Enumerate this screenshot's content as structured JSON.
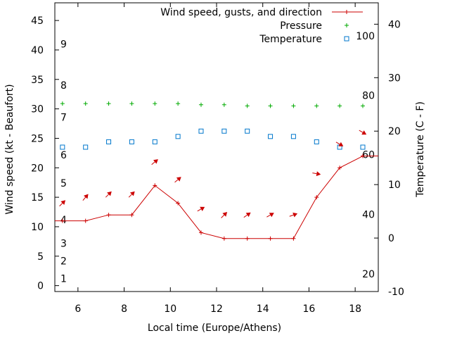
{
  "chart_data": {
    "type": "line",
    "xlabel": "Local time (Europe/Athens)",
    "ylabel_left": "Wind speed (kt - Beaufort)",
    "ylabel_right": "Temperature (C - F)",
    "xlim": [
      5,
      19
    ],
    "x_ticks": [
      6,
      8,
      10,
      12,
      14,
      16,
      18
    ],
    "ylim_left": [
      -1,
      48
    ],
    "y_ticks_left": [
      0,
      5,
      10,
      15,
      20,
      25,
      30,
      35,
      40,
      45
    ],
    "ylim_right": [
      -10,
      44
    ],
    "y_ticks_right": [
      -10,
      0,
      10,
      20,
      30,
      40
    ],
    "beaufort_labels": [
      {
        "label": "1",
        "kt": 1.2
      },
      {
        "label": "2",
        "kt": 4.2
      },
      {
        "label": "3",
        "kt": 7.2
      },
      {
        "label": "4",
        "kt": 11.2
      },
      {
        "label": "5",
        "kt": 17.4
      },
      {
        "label": "6",
        "kt": 22.2
      },
      {
        "label": "7",
        "kt": 28.6
      },
      {
        "label": "8",
        "kt": 34.0
      },
      {
        "label": "9",
        "kt": 41.0
      }
    ],
    "fahrenheit_labels": [
      {
        "label": "20",
        "celsius": -6.7
      },
      {
        "label": "40",
        "celsius": 4.4
      },
      {
        "label": "60",
        "celsius": 15.6
      },
      {
        "label": "80",
        "celsius": 26.7
      },
      {
        "label": "100",
        "celsius": 37.8
      }
    ],
    "x": [
      5.33,
      6.33,
      7.33,
      8.33,
      9.33,
      10.33,
      11.33,
      12.33,
      13.33,
      14.33,
      15.33,
      16.33,
      17.33,
      18.33
    ],
    "series": [
      {
        "name": "Wind speed, gusts, and direction",
        "color": "#cc0000",
        "axis": "left",
        "values": [
          11,
          11,
          12,
          12,
          17,
          14,
          9,
          8,
          8,
          8,
          8,
          15,
          20,
          22
        ]
      },
      {
        "name": "Pressure",
        "color": "#00aa00",
        "axis": "left",
        "values": [
          30.9,
          30.9,
          30.9,
          30.9,
          30.9,
          30.9,
          30.7,
          30.7,
          30.5,
          30.5,
          30.5,
          30.5,
          30.5,
          30.5
        ]
      },
      {
        "name": "Temperature",
        "color": "#0077cc",
        "axis": "right",
        "values": [
          17,
          17,
          18,
          18,
          18,
          19,
          20,
          20,
          20,
          19,
          19,
          18,
          17,
          17
        ]
      }
    ],
    "wind_direction": {
      "name": "direction",
      "color": "#cc0000",
      "axis": "left",
      "levels": [
        14,
        15,
        15.5,
        15.5,
        21,
        18,
        13,
        12,
        12,
        12,
        12,
        19,
        24,
        26
      ],
      "angles_deg": [
        45,
        50,
        45,
        45,
        40,
        40,
        30,
        45,
        35,
        30,
        20,
        -10,
        -30,
        -30
      ]
    }
  }
}
